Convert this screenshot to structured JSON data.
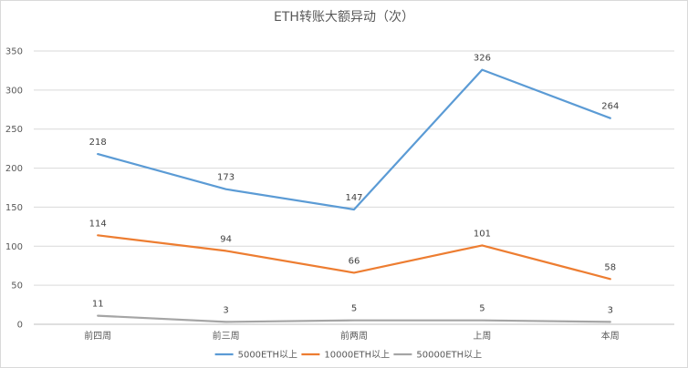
{
  "chart_data": {
    "type": "line",
    "title": "ETH转账大额异动（次）",
    "xlabel": "",
    "ylabel": "",
    "categories": [
      "前四周",
      "前三周",
      "前两周",
      "上周",
      "本周"
    ],
    "ylim": [
      0,
      350
    ],
    "yticks": [
      0,
      50,
      100,
      150,
      200,
      250,
      300,
      350
    ],
    "grid": true,
    "legend_position": "bottom",
    "series": [
      {
        "name": "5000ETH以上",
        "color": "#5b9bd5",
        "values": [
          218,
          173,
          147,
          326,
          264
        ]
      },
      {
        "name": "10000ETH以上",
        "color": "#ed7d31",
        "values": [
          114,
          94,
          66,
          101,
          58
        ]
      },
      {
        "name": "50000ETH以上",
        "color": "#a5a5a5",
        "values": [
          11,
          3,
          5,
          5,
          3
        ]
      }
    ]
  }
}
